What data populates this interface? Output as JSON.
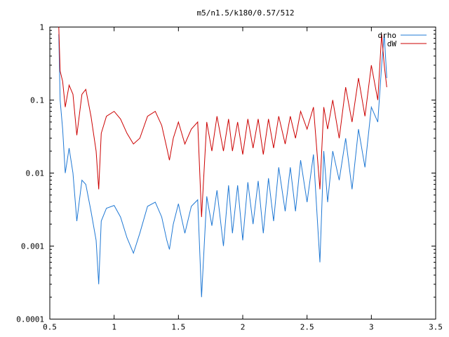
{
  "chart_data": {
    "type": "line",
    "title": "m5/n1.5/k180/0.57/512",
    "xlabel": "",
    "ylabel": "",
    "xlim": [
      0.5,
      3.5
    ],
    "ylim": [
      0.0001,
      1
    ],
    "yscale": "log",
    "grid": false,
    "legend_position": "top-right",
    "x_ticks": [
      0.5,
      1,
      1.5,
      2,
      2.5,
      3,
      3.5
    ],
    "x_tick_labels": [
      "0.5",
      "1",
      "1.5",
      "2",
      "2.5",
      "3",
      "3.5"
    ],
    "y_ticks": [
      0.0001,
      0.001,
      0.01,
      0.1,
      1
    ],
    "y_tick_labels": [
      "0.0001",
      "0.001",
      "0.01",
      "0.1",
      "1"
    ],
    "series": [
      {
        "name": "drho",
        "color": "#1f78d4",
        "x": [
          0.57,
          0.58,
          0.6,
          0.62,
          0.65,
          0.68,
          0.71,
          0.75,
          0.78,
          0.82,
          0.86,
          0.88,
          0.9,
          0.94,
          1.0,
          1.05,
          1.1,
          1.15,
          1.2,
          1.26,
          1.32,
          1.37,
          1.41,
          1.43,
          1.46,
          1.5,
          1.55,
          1.6,
          1.65,
          1.68,
          1.72,
          1.76,
          1.8,
          1.85,
          1.89,
          1.92,
          1.96,
          2.0,
          2.04,
          2.08,
          2.12,
          2.16,
          2.2,
          2.24,
          2.28,
          2.33,
          2.37,
          2.41,
          2.45,
          2.5,
          2.55,
          2.6,
          2.63,
          2.66,
          2.7,
          2.75,
          2.8,
          2.85,
          2.9,
          2.95,
          3.0,
          3.05,
          3.08,
          3.1,
          3.12
        ],
        "y": [
          0.8,
          0.1,
          0.04,
          0.01,
          0.022,
          0.01,
          0.0022,
          0.008,
          0.007,
          0.003,
          0.0012,
          0.0003,
          0.0022,
          0.0033,
          0.0036,
          0.0025,
          0.0013,
          0.0008,
          0.0015,
          0.0035,
          0.004,
          0.0025,
          0.0012,
          0.0009,
          0.002,
          0.0038,
          0.0015,
          0.0035,
          0.0043,
          0.0002,
          0.0048,
          0.0019,
          0.0058,
          0.001,
          0.0068,
          0.0015,
          0.0068,
          0.0012,
          0.0075,
          0.002,
          0.0078,
          0.0015,
          0.0085,
          0.0022,
          0.012,
          0.003,
          0.012,
          0.003,
          0.015,
          0.004,
          0.018,
          0.0006,
          0.02,
          0.004,
          0.02,
          0.008,
          0.03,
          0.006,
          0.04,
          0.012,
          0.08,
          0.05,
          0.3,
          0.8,
          0.2
        ]
      },
      {
        "name": "dW",
        "color": "#cc0000",
        "x": [
          0.57,
          0.58,
          0.6,
          0.62,
          0.65,
          0.68,
          0.71,
          0.75,
          0.78,
          0.82,
          0.86,
          0.88,
          0.9,
          0.94,
          1.0,
          1.05,
          1.1,
          1.15,
          1.2,
          1.26,
          1.32,
          1.37,
          1.41,
          1.43,
          1.46,
          1.5,
          1.55,
          1.6,
          1.65,
          1.68,
          1.72,
          1.76,
          1.8,
          1.85,
          1.89,
          1.92,
          1.96,
          2.0,
          2.04,
          2.08,
          2.12,
          2.16,
          2.2,
          2.24,
          2.28,
          2.33,
          2.37,
          2.41,
          2.45,
          2.5,
          2.55,
          2.6,
          2.63,
          2.66,
          2.7,
          2.75,
          2.8,
          2.85,
          2.9,
          2.95,
          3.0,
          3.05,
          3.08,
          3.1,
          3.12
        ],
        "y": [
          1.0,
          0.25,
          0.18,
          0.08,
          0.16,
          0.12,
          0.033,
          0.12,
          0.14,
          0.06,
          0.02,
          0.006,
          0.035,
          0.06,
          0.07,
          0.055,
          0.035,
          0.025,
          0.03,
          0.06,
          0.07,
          0.045,
          0.022,
          0.015,
          0.03,
          0.05,
          0.025,
          0.04,
          0.05,
          0.0025,
          0.05,
          0.02,
          0.06,
          0.02,
          0.055,
          0.02,
          0.05,
          0.018,
          0.055,
          0.022,
          0.055,
          0.018,
          0.055,
          0.022,
          0.06,
          0.025,
          0.06,
          0.03,
          0.07,
          0.04,
          0.08,
          0.006,
          0.08,
          0.04,
          0.1,
          0.03,
          0.15,
          0.05,
          0.2,
          0.06,
          0.3,
          0.1,
          0.8,
          0.3,
          0.15
        ]
      }
    ]
  }
}
